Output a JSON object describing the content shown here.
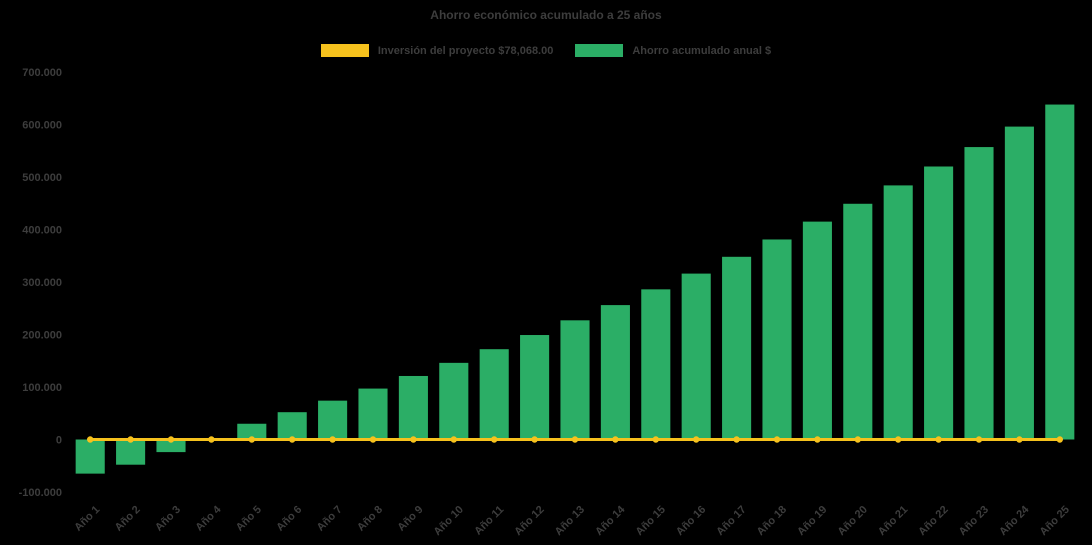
{
  "title": "Ahorro económico acumulado a 25 años",
  "legend": [
    {
      "label": "Inversión del proyecto $78,068.00",
      "color": "#f6c21d",
      "series_type": "line"
    },
    {
      "label": "Ahorro acumulado anual $",
      "color": "#2bae66",
      "series_type": "bar"
    }
  ],
  "colors": {
    "background": "#000000",
    "text": "#3d3d3d",
    "bar": "#2bae66",
    "line": "#f6c21d"
  },
  "chart_data": {
    "type": "bar",
    "title": "Ahorro económico acumulado a 25 años",
    "xlabel": "",
    "ylabel": "",
    "grid": false,
    "legend_position": "top",
    "x_label_rotation": -45,
    "ylim": [
      -100000,
      700000
    ],
    "ytick_step": 100000,
    "ytick_labels": [
      "700.000",
      "600.000",
      "500.000",
      "400.000",
      "300.000",
      "200.000",
      "100.000",
      "0",
      "-100.000"
    ],
    "categories": [
      "Año 1",
      "Año 2",
      "Año 3",
      "Año 4",
      "Año 5",
      "Año 6",
      "Año 7",
      "Año 8",
      "Año 9",
      "Año 10",
      "Año 11",
      "Año 12",
      "Año 13",
      "Año 14",
      "Año 15",
      "Año 16",
      "Año 17",
      "Año 18",
      "Año 19",
      "Año 20",
      "Año 21",
      "Año 22",
      "Año 23",
      "Año 24",
      "Año 25"
    ],
    "series": [
      {
        "name": "Inversión del proyecto $78,068.00",
        "type": "line",
        "color": "#f6c21d",
        "values": [
          0,
          0,
          0,
          0,
          0,
          0,
          0,
          0,
          0,
          0,
          0,
          0,
          0,
          0,
          0,
          0,
          0,
          0,
          0,
          0,
          0,
          0,
          0,
          0,
          0
        ]
      },
      {
        "name": "Ahorro acumulado anual $",
        "type": "bar",
        "color": "#2bae66",
        "values": [
          -65000,
          -48000,
          -24000,
          2000,
          30000,
          52000,
          74000,
          97000,
          121000,
          146000,
          172000,
          199000,
          227000,
          256000,
          286000,
          316000,
          348000,
          381000,
          415000,
          449000,
          484000,
          520000,
          557000,
          596000,
          638000
        ]
      }
    ]
  }
}
